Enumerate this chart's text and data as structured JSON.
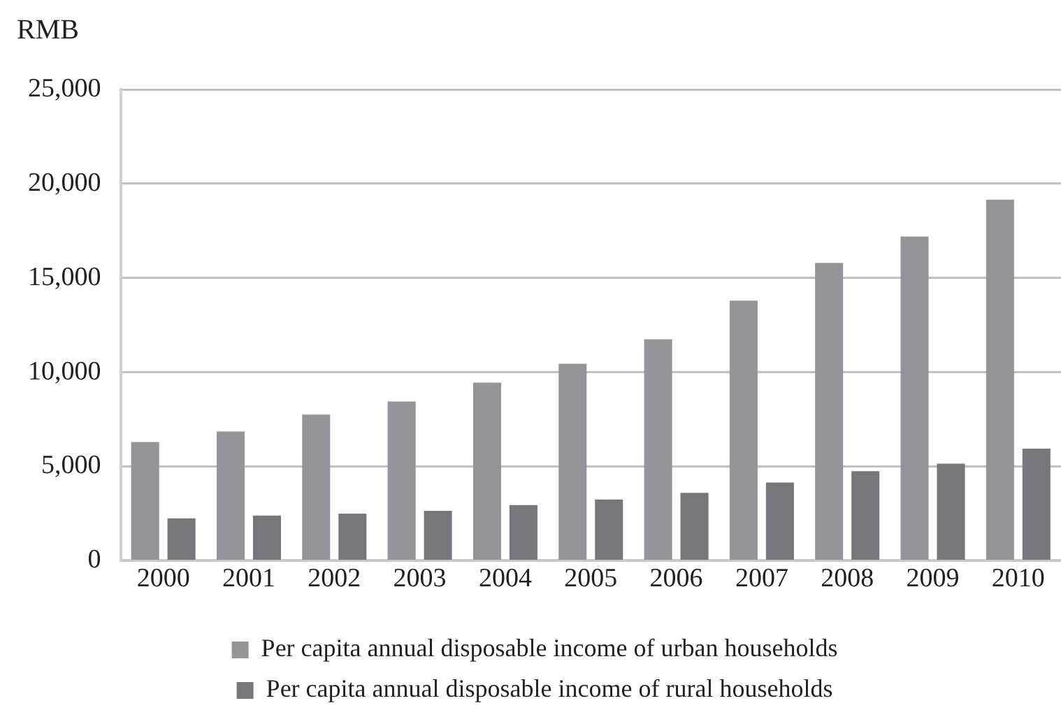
{
  "chart_data": {
    "type": "bar",
    "ylabel": "RMB",
    "categories": [
      "2000",
      "2001",
      "2002",
      "2003",
      "2004",
      "2005",
      "2006",
      "2007",
      "2008",
      "2009",
      "2010"
    ],
    "series": [
      {
        "name": "Per capita annual disposable income of urban households",
        "color": "#949598",
        "values": [
          6300,
          6850,
          7750,
          8450,
          9450,
          10450,
          11750,
          13800,
          15800,
          17200,
          19150
        ]
      },
      {
        "name": "Per capita annual disposable income of rural households",
        "color": "#76777b",
        "values": [
          2250,
          2400,
          2500,
          2650,
          2950,
          3250,
          3600,
          4150,
          4750,
          5150,
          5950
        ]
      }
    ],
    "ylim": [
      0,
      25000
    ],
    "yticks": [
      0,
      {
        "value": 5000,
        "label": "5,000"
      },
      {
        "value": 10000,
        "label": "10,000"
      },
      {
        "value": 15000,
        "label": "15,000"
      },
      {
        "value": 20000,
        "label": "20,000"
      },
      {
        "value": 25000,
        "label": "25,000"
      }
    ],
    "grid": "y",
    "legend": "bottom"
  }
}
